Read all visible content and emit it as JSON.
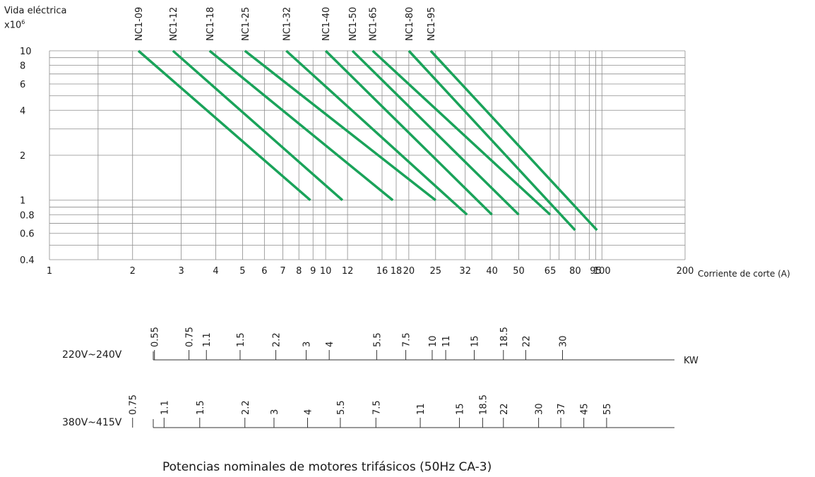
{
  "chart_data": {
    "type": "line",
    "ylabel": "Vida eléctrica",
    "ylabel_multiplier": "x10",
    "ylabel_exponent": "6",
    "xlabel": "Corriente de corte (A)",
    "x_scale": "log",
    "y_scale": "log",
    "xlim": [
      1,
      200
    ],
    "ylim": [
      0.4,
      10
    ],
    "x_ticks": [
      1,
      2,
      3,
      4,
      5,
      6,
      7,
      8,
      9,
      10,
      12,
      16,
      18,
      20,
      25,
      32,
      40,
      50,
      65,
      80,
      95,
      100,
      200
    ],
    "x_tick_labels": [
      "1",
      "2",
      "3",
      "4",
      "5",
      "6",
      "7",
      "8",
      "9",
      "10",
      "12",
      "16",
      "18",
      "20",
      "25",
      "32",
      "40",
      "50",
      "65",
      "80",
      "95",
      "100",
      "200"
    ],
    "y_ticks": [
      0.4,
      0.6,
      0.8,
      1,
      2,
      4,
      6,
      8,
      10
    ],
    "y_tick_labels": [
      "0.4",
      "0.6",
      "0.8",
      "1",
      "2",
      "4",
      "6",
      "8",
      "10"
    ],
    "x_gridlines": [
      1,
      1.5,
      2,
      3,
      4,
      5,
      6,
      7,
      8,
      9,
      10,
      12,
      16,
      18,
      20,
      25,
      32,
      40,
      50,
      65,
      70,
      80,
      90,
      95,
      100,
      200
    ],
    "y_gridlines": [
      0.4,
      0.5,
      0.6,
      0.7,
      0.8,
      0.9,
      1,
      2,
      3,
      4,
      5,
      6,
      7,
      8,
      9,
      10
    ],
    "grid": true,
    "line_color": "#1aa35a",
    "grid_color": "#8c8c8c",
    "series": [
      {
        "name": "NC1-09",
        "x": [
          2.1,
          8.8
        ],
        "y": [
          10,
          1
        ]
      },
      {
        "name": "NC1-12",
        "x": [
          2.8,
          11.5
        ],
        "y": [
          10,
          1
        ]
      },
      {
        "name": "NC1-18",
        "x": [
          3.8,
          17.5
        ],
        "y": [
          10,
          1
        ]
      },
      {
        "name": "NC1-25",
        "x": [
          5.1,
          25
        ],
        "y": [
          10,
          1
        ]
      },
      {
        "name": "NC1-32",
        "x": [
          7.2,
          32.5
        ],
        "y": [
          10,
          0.8
        ]
      },
      {
        "name": "NC1-40",
        "x": [
          10,
          40
        ],
        "y": [
          10,
          0.8
        ]
      },
      {
        "name": "NC1-50",
        "x": [
          12.5,
          50
        ],
        "y": [
          10,
          0.8
        ]
      },
      {
        "name": "NC1-65",
        "x": [
          14.8,
          65
        ],
        "y": [
          10,
          0.8
        ]
      },
      {
        "name": "NC1-80",
        "x": [
          20,
          80
        ],
        "y": [
          10,
          0.63
        ]
      },
      {
        "name": "NC1-95",
        "x": [
          24,
          96
        ],
        "y": [
          10,
          0.63
        ]
      }
    ],
    "power_scales": [
      {
        "voltage": "220V~240V",
        "unit": "KW",
        "ticks": [
          {
            "label": "0.55",
            "amps": 2.4
          },
          {
            "label": "0.75",
            "amps": 3.2
          },
          {
            "label": "1.1",
            "amps": 3.7
          },
          {
            "label": "1.5",
            "amps": 4.9
          },
          {
            "label": "2.2",
            "amps": 6.6
          },
          {
            "label": "3",
            "amps": 8.5
          },
          {
            "label": "4",
            "amps": 10.3
          },
          {
            "label": "5.5",
            "amps": 15.3
          },
          {
            "label": "7.5",
            "amps": 19.5
          },
          {
            "label": "10",
            "amps": 24.3
          },
          {
            "label": "11",
            "amps": 27.2
          },
          {
            "label": "15",
            "amps": 34.5
          },
          {
            "label": "18.5",
            "amps": 44
          },
          {
            "label": "22",
            "amps": 53
          },
          {
            "label": "30",
            "amps": 72
          }
        ]
      },
      {
        "voltage": "380V~415V",
        "unit": "",
        "ticks": [
          {
            "label": "0.75",
            "amps": 2
          },
          {
            "label": "1.1",
            "amps": 2.6
          },
          {
            "label": "1.5",
            "amps": 3.5
          },
          {
            "label": "2.2",
            "amps": 5.1
          },
          {
            "label": "3",
            "amps": 6.5
          },
          {
            "label": "4",
            "amps": 8.6
          },
          {
            "label": "5.5",
            "amps": 11.3
          },
          {
            "label": "7.5",
            "amps": 15.2
          },
          {
            "label": "11",
            "amps": 22
          },
          {
            "label": "15",
            "amps": 30.5
          },
          {
            "label": "18.5",
            "amps": 37
          },
          {
            "label": "22",
            "amps": 44
          },
          {
            "label": "30",
            "amps": 59
          },
          {
            "label": "37",
            "amps": 71
          },
          {
            "label": "45",
            "amps": 86
          },
          {
            "label": "55",
            "amps": 104
          }
        ]
      }
    ],
    "caption": "Potencias nominales de motores trifásicos (50Hz CA-3)"
  }
}
